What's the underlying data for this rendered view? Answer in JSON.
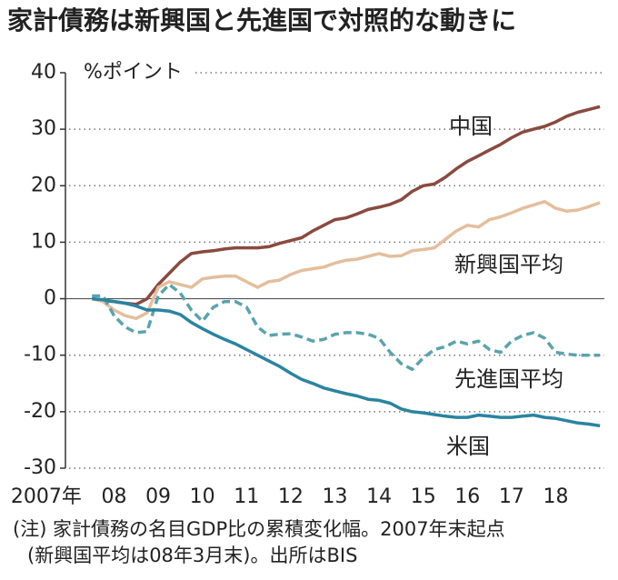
{
  "chart_data": {
    "type": "line",
    "title": "家計債務は新興国と先進国で対照的な動きに",
    "y_unit": "%ポイント",
    "note": [
      "(注) 家計債務の名目GDP比の累積変化幅。2007年末起点",
      "(新興国平均は08年3月末)。出所はBIS"
    ],
    "x": [
      2008,
      2008.25,
      2008.5,
      2008.75,
      2009,
      2009.25,
      2009.5,
      2009.75,
      2010,
      2010.25,
      2010.5,
      2010.75,
      2011,
      2011.25,
      2011.5,
      2011.75,
      2012,
      2012.25,
      2012.5,
      2012.75,
      2013,
      2013.25,
      2013.5,
      2013.75,
      2014,
      2014.25,
      2014.5,
      2014.75,
      2015,
      2015.25,
      2015.5,
      2015.75,
      2016,
      2016.25,
      2016.5,
      2016.75,
      2017,
      2017.25,
      2017.5,
      2017.75,
      2018,
      2018.25,
      2018.5,
      2018.75,
      2019,
      2019.25,
      2019.5
    ],
    "series": [
      {
        "name": "中国",
        "color": "#8a4a3f",
        "dashed": false,
        "values": [
          0,
          -0.3,
          -0.5,
          -0.8,
          -1,
          0,
          2.5,
          4.5,
          6.5,
          8,
          8.3,
          8.5,
          8.8,
          9,
          9,
          9,
          9.2,
          9.8,
          10.3,
          10.8,
          12,
          13,
          14,
          14.3,
          15,
          15.8,
          16.2,
          16.7,
          17.5,
          19,
          20,
          20.3,
          21.5,
          23,
          24.3,
          25.3,
          26.3,
          27.3,
          28.5,
          29.5,
          30,
          30.5,
          31.3,
          32.3,
          33,
          33.5,
          34
        ]
      },
      {
        "name": "新興国平均",
        "color": "#e4bf9c",
        "dashed": false,
        "values": [
          0,
          -0.5,
          -2,
          -3,
          -3.5,
          -2.5,
          2,
          3,
          2.5,
          2,
          3.5,
          3.8,
          4,
          4,
          3,
          2,
          3,
          3.3,
          4.3,
          5,
          5.3,
          5.6,
          6.3,
          6.8,
          7,
          7.5,
          8,
          7.5,
          7.6,
          8.5,
          8.7,
          9,
          10.5,
          12,
          13,
          12.7,
          14,
          14.5,
          15.2,
          16,
          16.6,
          17.2,
          16,
          15.5,
          15.7,
          16.3,
          17
        ]
      },
      {
        "name": "先進国平均",
        "color": "#5aa3ae",
        "dashed": true,
        "values": [
          0.5,
          0.5,
          -3,
          -5,
          -6,
          -5.8,
          0.5,
          2.5,
          1,
          -2,
          -4,
          -1.5,
          -0.5,
          -0.5,
          -1.5,
          -5,
          -6.5,
          -6.3,
          -6.2,
          -6.8,
          -7.5,
          -7.2,
          -6.3,
          -6,
          -6,
          -6.3,
          -7,
          -9.5,
          -11.5,
          -12.5,
          -10.5,
          -9,
          -8.5,
          -7.5,
          -8,
          -7.5,
          -9,
          -9.5,
          -7.5,
          -6.5,
          -6,
          -7,
          -9.5,
          -9.8,
          -10,
          -10,
          -10
        ]
      },
      {
        "name": "米国",
        "color": "#2a84a0",
        "dashed": false,
        "values": [
          0,
          -0.2,
          -0.5,
          -0.8,
          -1.3,
          -2,
          -2,
          -2.2,
          -2.8,
          -4.2,
          -5.3,
          -6.3,
          -7.2,
          -8,
          -9,
          -10,
          -11,
          -12,
          -13.2,
          -14.3,
          -15,
          -15.8,
          -16.3,
          -16.8,
          -17.2,
          -17.8,
          -18,
          -18.5,
          -19.5,
          -20,
          -20.2,
          -20.5,
          -20.8,
          -21,
          -21,
          -20.6,
          -20.8,
          -21,
          -21,
          -20.8,
          -20.6,
          -21,
          -21.2,
          -21.6,
          -22,
          -22.2,
          -22.5
        ]
      }
    ],
    "xlim": [
      2007.4,
      2019.6
    ],
    "xticks": [
      {
        "value": 2007.5,
        "label": "2007年"
      },
      {
        "value": 2008.5,
        "label": "08"
      },
      {
        "value": 2009.5,
        "label": "09"
      },
      {
        "value": 2010.5,
        "label": "10"
      },
      {
        "value": 2011.5,
        "label": "11"
      },
      {
        "value": 2012.5,
        "label": "12"
      },
      {
        "value": 2013.5,
        "label": "13"
      },
      {
        "value": 2014.5,
        "label": "14"
      },
      {
        "value": 2015.5,
        "label": "15"
      },
      {
        "value": 2016.5,
        "label": "16"
      },
      {
        "value": 2017.5,
        "label": "17"
      },
      {
        "value": 2018.5,
        "label": "18"
      }
    ],
    "ylim": [
      -30,
      40
    ],
    "yticks": [
      -30,
      -20,
      -10,
      0,
      10,
      20,
      30,
      40
    ],
    "grid": true
  }
}
